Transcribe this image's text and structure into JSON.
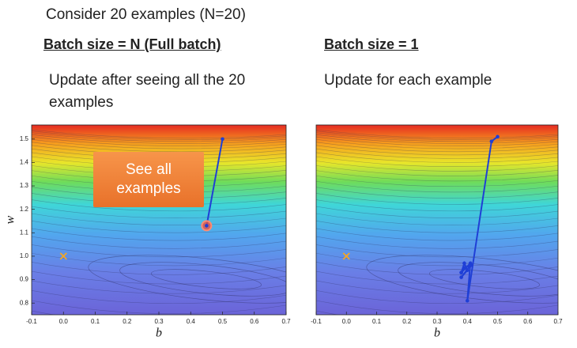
{
  "slide": {
    "heading": "Consider 20 examples (N=20)",
    "left": {
      "title": "Batch size = N (Full batch)",
      "text": "Update after seeing all the 20 examples"
    },
    "right": {
      "title": "Batch size = 1",
      "text": "Update for each example"
    }
  },
  "chart_data": [
    {
      "type": "line",
      "x_label": "b",
      "y_label": "w",
      "annotation": "See all examples",
      "highlight_last": true,
      "xlim": [
        -0.1,
        0.7
      ],
      "ylim": [
        0.75,
        1.56
      ],
      "xticks": [
        -0.1,
        {
          "value": 0,
          "label": "0.0"
        },
        0.1,
        0.2,
        0.3,
        0.4,
        0.5,
        0.6,
        0.7
      ],
      "yticks": [
        0.8,
        0.9,
        {
          "value": 1,
          "label": "1.0"
        },
        1.1,
        1.2,
        1.3,
        1.4,
        1.5
      ],
      "target": {
        "x": 0,
        "y": 1,
        "color": "#f5a623"
      },
      "series": [
        {
          "color": "#1f3fd6",
          "x": [
            0.5,
            0.45
          ],
          "values": [
            1.5,
            1.13
          ]
        }
      ]
    },
    {
      "type": "line",
      "x_label": "b",
      "highlight_last": false,
      "xlim": [
        -0.1,
        0.7
      ],
      "ylim": [
        0.75,
        1.56
      ],
      "xticks": [
        -0.1,
        {
          "value": 0,
          "label": "0.0"
        },
        0.1,
        0.2,
        0.3,
        0.4,
        0.5,
        0.6,
        0.7
      ],
      "target": {
        "x": 0,
        "y": 1,
        "color": "#f5a623"
      },
      "series": [
        {
          "color": "#1f3fd6",
          "x": [
            0.5,
            0.48,
            0.4,
            0.41,
            0.38,
            0.39,
            0.4,
            0.38,
            0.41,
            0.39,
            0.38
          ],
          "values": [
            1.51,
            1.49,
            0.81,
            0.97,
            0.93,
            0.97,
            0.94,
            0.91,
            0.96,
            0.95,
            0.93
          ]
        }
      ]
    }
  ]
}
